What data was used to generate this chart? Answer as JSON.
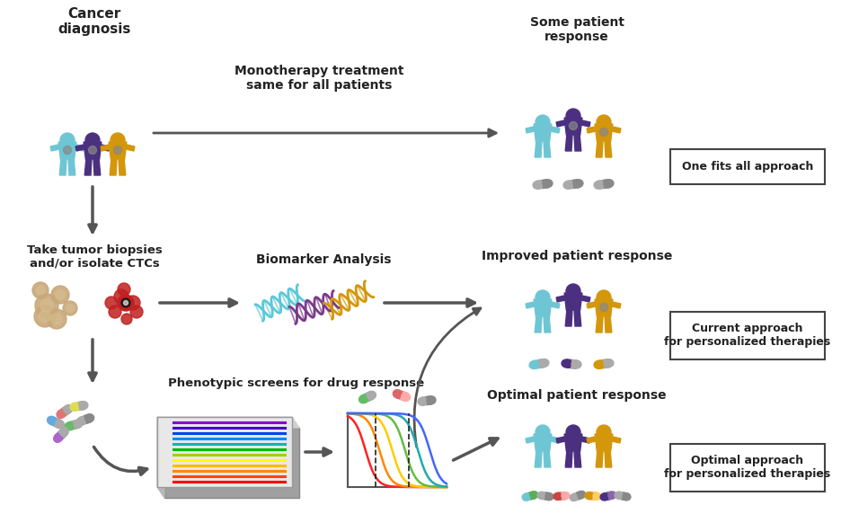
{
  "bg_color": "#ffffff",
  "person_cyan": "#6EC6D4",
  "person_purple": "#4B3080",
  "person_orange": "#D4960A",
  "arrow_color": "#555555",
  "text_color": "#222222",
  "label_top_left": "Cancer\ndiagnosis",
  "label_mid_left": "Take tumor biopsies\nand/or isolate CTCs",
  "label_mono": "Monotherapy treatment\nsame for all patients",
  "label_biomarker": "Biomarker Analysis",
  "label_pheno": "Phenotypic screens for drug response",
  "label_some": "Some patient\nresponse",
  "label_improved": "Improved patient response",
  "label_optimal": "Optimal patient response",
  "box1": "One fits all approach",
  "box2": "Current approach\nfor personalized therapies",
  "box3": "Optimal approach\nfor personalized therapies",
  "dna_cyan": "#5BC8D8",
  "dna_purple": "#7B3A8A",
  "dna_orange": "#D4960A",
  "pill_gray": "#AAAAAA",
  "pill_purple": "#4B3080",
  "pill_orange": "#D4960A",
  "pill_cyan": "#6EC6D4",
  "pill_green": "#5BAD5B",
  "pill_red": "#CC4444",
  "biopsy_color": "#C8A878",
  "cell_color": "#CC3333",
  "figw": 9.36,
  "figh": 5.72,
  "dpi": 100
}
